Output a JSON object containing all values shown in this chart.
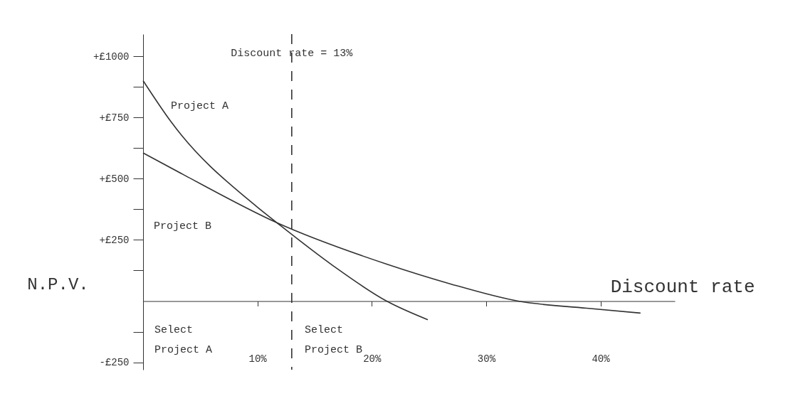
{
  "chart_data": {
    "type": "line",
    "xlabel": "Discount rate",
    "ylabel": "N.P.V.",
    "series": [
      {
        "name": "Project A",
        "color": "#333333",
        "x": [
          0,
          2.4,
          9.9,
          11.7,
          16.6,
          21.3,
          24.9
        ],
        "values": [
          900,
          735,
          387,
          320,
          145,
          0,
          -76
        ]
      },
      {
        "name": "Project B",
        "color": "#333333",
        "x": [
          0,
          3.7,
          11.7,
          21.3,
          26.9,
          32.8,
          38.8,
          43.5
        ],
        "values": [
          605,
          512,
          320,
          151,
          70,
          0,
          -29,
          -49
        ]
      }
    ],
    "xlim": [
      0,
      46.5
    ],
    "xticks": [
      {
        "value": 10,
        "label": "10%"
      },
      {
        "value": 20,
        "label": "20%"
      },
      {
        "value": 30,
        "label": "30%"
      },
      {
        "value": 40,
        "label": "40%"
      }
    ],
    "ylim": [
      -280,
      1090
    ],
    "yticks": [
      {
        "value": -250,
        "label": "-£250"
      },
      {
        "value": -125,
        "label": null
      },
      {
        "value": 125,
        "label": null
      },
      {
        "value": 250,
        "label": "+£250"
      },
      {
        "value": 375,
        "label": null
      },
      {
        "value": 500,
        "label": "+£500"
      },
      {
        "value": 625,
        "label": null
      },
      {
        "value": 750,
        "label": "+£750"
      },
      {
        "value": 875,
        "label": null
      },
      {
        "value": 1000,
        "label": "+£1000"
      }
    ],
    "ref_lines": [
      {
        "axis": "x",
        "value": 13,
        "label": "Discount rate = 13%",
        "line_style": "dashed"
      }
    ],
    "annotations": [
      "Select Project A",
      "Select Project B"
    ],
    "grid": false,
    "line_style": "solid"
  }
}
